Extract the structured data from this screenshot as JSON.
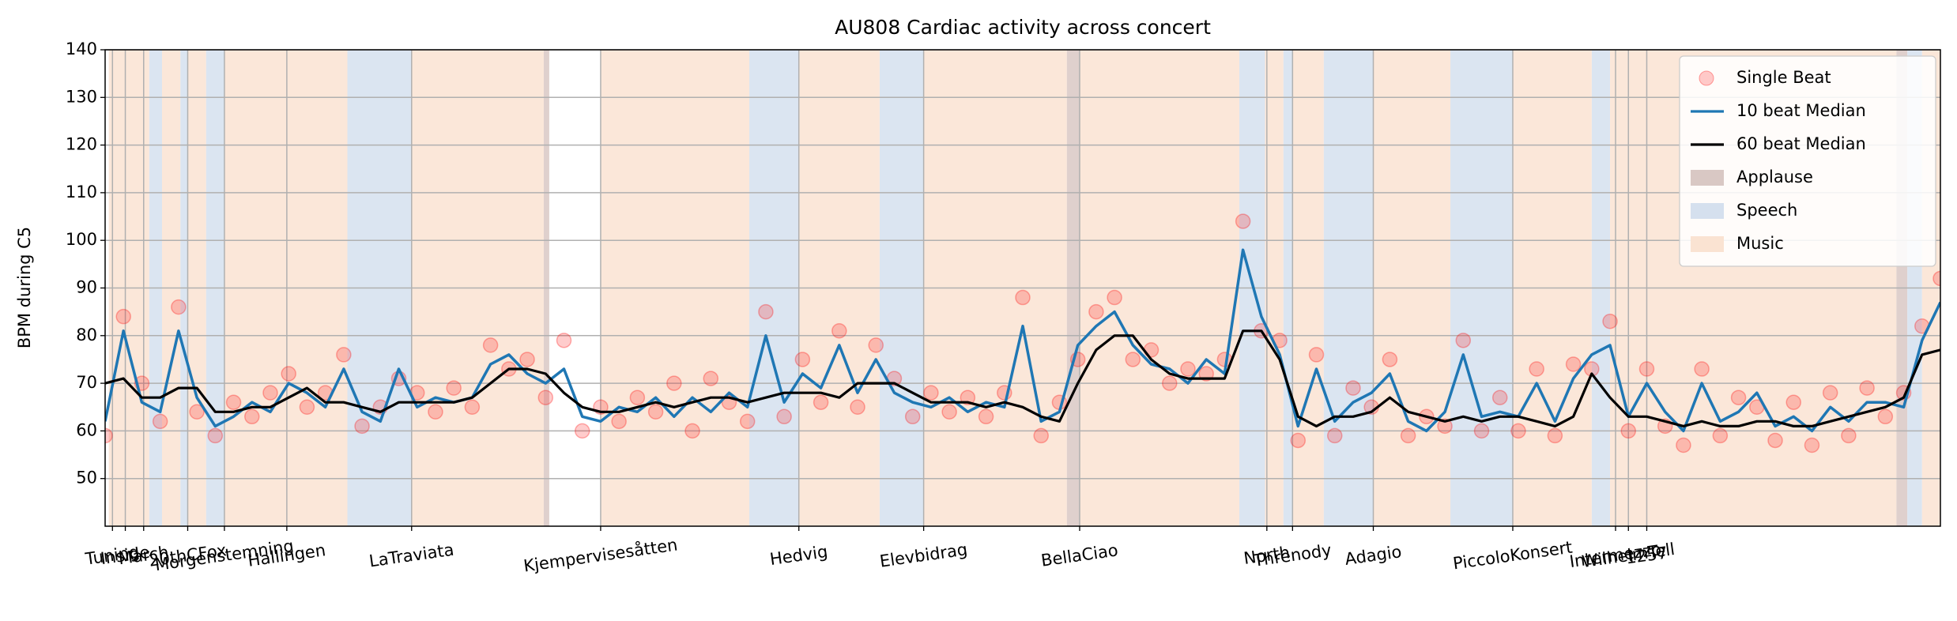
{
  "chart_data": {
    "type": "line",
    "title": "AU808 Cardiac activity across concert",
    "y_label": "BPM during C5",
    "xlim": [
      0,
      1000
    ],
    "ylim": [
      40,
      140
    ],
    "yticks": [
      50,
      60,
      70,
      80,
      90,
      100,
      110,
      120,
      130,
      140
    ],
    "xticks": [
      {
        "value": 4,
        "label": "Tuning"
      },
      {
        "value": 11,
        "label": "Inside"
      },
      {
        "value": 21,
        "label": "March"
      },
      {
        "value": 45,
        "label": "20thCFox"
      },
      {
        "value": 65,
        "label": "Morgenstemning"
      },
      {
        "value": 99,
        "label": "Hallingen"
      },
      {
        "value": 167,
        "label": "LaTraviata"
      },
      {
        "value": 270,
        "label": "Kjempervisesåtten"
      },
      {
        "value": 378,
        "label": "Hedvig"
      },
      {
        "value": 446,
        "label": "Elevbidrag"
      },
      {
        "value": 531,
        "label": "BellaCiao"
      },
      {
        "value": 633,
        "label": "North"
      },
      {
        "value": 647,
        "label": "Threnody"
      },
      {
        "value": 691,
        "label": "Adagio"
      },
      {
        "value": 767,
        "label": "PiccoloKonsert"
      },
      {
        "value": 823,
        "label": "Intermezzo"
      },
      {
        "value": 830,
        "label": "WilhelmTell"
      },
      {
        "value": 840,
        "label": "1257"
      }
    ],
    "grid": true,
    "legend": "upper right",
    "x": [
      0,
      10,
      20,
      30,
      40,
      50,
      60,
      70,
      80,
      90,
      100,
      110,
      120,
      130,
      140,
      150,
      160,
      170,
      180,
      190,
      200,
      210,
      220,
      230,
      240,
      250,
      260,
      270,
      280,
      290,
      300,
      310,
      320,
      330,
      340,
      350,
      360,
      370,
      380,
      390,
      400,
      410,
      420,
      430,
      440,
      450,
      460,
      470,
      480,
      490,
      500,
      510,
      520,
      530,
      540,
      550,
      560,
      570,
      580,
      590,
      600,
      610,
      620,
      630,
      640,
      650,
      660,
      670,
      680,
      690,
      700,
      710,
      720,
      730,
      740,
      750,
      760,
      770,
      780,
      790,
      800,
      810,
      820,
      830,
      840,
      850,
      860,
      870,
      880,
      890,
      900,
      910,
      920,
      930,
      940,
      950,
      960,
      970,
      980,
      990,
      1000
    ],
    "series": [
      {
        "name": "Single Beat",
        "color": "#ff0000",
        "style": "scatter",
        "values": [
          59,
          84,
          70,
          62,
          86,
          64,
          59,
          66,
          63,
          68,
          72,
          65,
          68,
          76,
          61,
          65,
          71,
          68,
          64,
          69,
          65,
          78,
          73,
          75,
          67,
          79,
          60,
          65,
          62,
          67,
          64,
          70,
          60,
          71,
          66,
          62,
          85,
          63,
          75,
          66,
          81,
          65,
          78,
          71,
          63,
          68,
          64,
          67,
          63,
          68,
          88,
          59,
          66,
          75,
          85,
          88,
          75,
          77,
          70,
          73,
          72,
          75,
          104,
          81,
          79,
          58,
          76,
          59,
          69,
          65,
          75,
          59,
          63,
          61,
          79,
          60,
          67,
          60,
          73,
          59,
          74,
          73,
          83,
          60,
          73,
          61,
          57,
          73,
          59,
          67,
          65,
          58,
          66,
          57,
          68,
          59,
          69,
          63,
          68,
          82,
          92
        ]
      },
      {
        "name": "10 beat Median",
        "color": "#1f77b4",
        "style": "line",
        "values": [
          62,
          81,
          66,
          64,
          81,
          67,
          61,
          63,
          66,
          64,
          70,
          68,
          65,
          73,
          64,
          62,
          73,
          65,
          67,
          66,
          67,
          74,
          76,
          72,
          70,
          73,
          63,
          62,
          65,
          64,
          67,
          63,
          67,
          64,
          68,
          65,
          80,
          66,
          72,
          69,
          78,
          68,
          75,
          68,
          66,
          65,
          67,
          64,
          66,
          65,
          82,
          62,
          64,
          78,
          82,
          85,
          78,
          74,
          73,
          70,
          75,
          72,
          98,
          84,
          76,
          61,
          73,
          62,
          66,
          68,
          72,
          62,
          60,
          64,
          76,
          63,
          64,
          63,
          70,
          62,
          71,
          76,
          78,
          63,
          70,
          64,
          60,
          70,
          62,
          64,
          68,
          61,
          63,
          60,
          65,
          62,
          66,
          66,
          65,
          79,
          87
        ]
      },
      {
        "name": "60 beat Median",
        "color": "#000000",
        "style": "line",
        "values": [
          70,
          71,
          67,
          67,
          69,
          69,
          64,
          64,
          65,
          65,
          67,
          69,
          66,
          66,
          65,
          64,
          66,
          66,
          66,
          66,
          67,
          70,
          73,
          73,
          72,
          68,
          65,
          64,
          64,
          65,
          66,
          65,
          66,
          67,
          67,
          66,
          67,
          68,
          68,
          68,
          67,
          70,
          70,
          70,
          68,
          66,
          66,
          66,
          65,
          66,
          65,
          63,
          62,
          70,
          77,
          80,
          80,
          75,
          72,
          71,
          71,
          71,
          81,
          81,
          75,
          63,
          61,
          63,
          63,
          64,
          67,
          64,
          63,
          62,
          63,
          62,
          63,
          63,
          62,
          61,
          63,
          72,
          67,
          63,
          63,
          62,
          61,
          62,
          61,
          61,
          62,
          62,
          61,
          61,
          62,
          63,
          64,
          65,
          67,
          76,
          77
        ]
      }
    ],
    "regions": [
      {
        "name": "Applause",
        "color": "#d9c8c4",
        "spans": [
          [
            239,
            242
          ],
          [
            524,
            531
          ],
          [
            976,
            982
          ]
        ]
      },
      {
        "name": "Speech",
        "color": "#d5e0ee",
        "spans": [
          [
            24,
            31
          ],
          [
            41,
            45
          ],
          [
            55,
            65
          ],
          [
            132,
            167
          ],
          [
            351,
            378
          ],
          [
            422,
            446
          ],
          [
            618,
            632
          ],
          [
            642,
            647
          ],
          [
            664,
            691
          ],
          [
            733,
            767
          ],
          [
            810,
            820
          ],
          [
            982,
            990
          ]
        ]
      },
      {
        "name": "Music",
        "color": "#fae3d2",
        "spans": [
          [
            2,
            24
          ],
          [
            31,
            41
          ],
          [
            45,
            55
          ],
          [
            65,
            132
          ],
          [
            167,
            239
          ],
          [
            270,
            351
          ],
          [
            378,
            422
          ],
          [
            446,
            524
          ],
          [
            531,
            618
          ],
          [
            632,
            642
          ],
          [
            647,
            664
          ],
          [
            691,
            733
          ],
          [
            767,
            810
          ],
          [
            820,
            976
          ],
          [
            990,
            1000
          ]
        ]
      }
    ]
  }
}
